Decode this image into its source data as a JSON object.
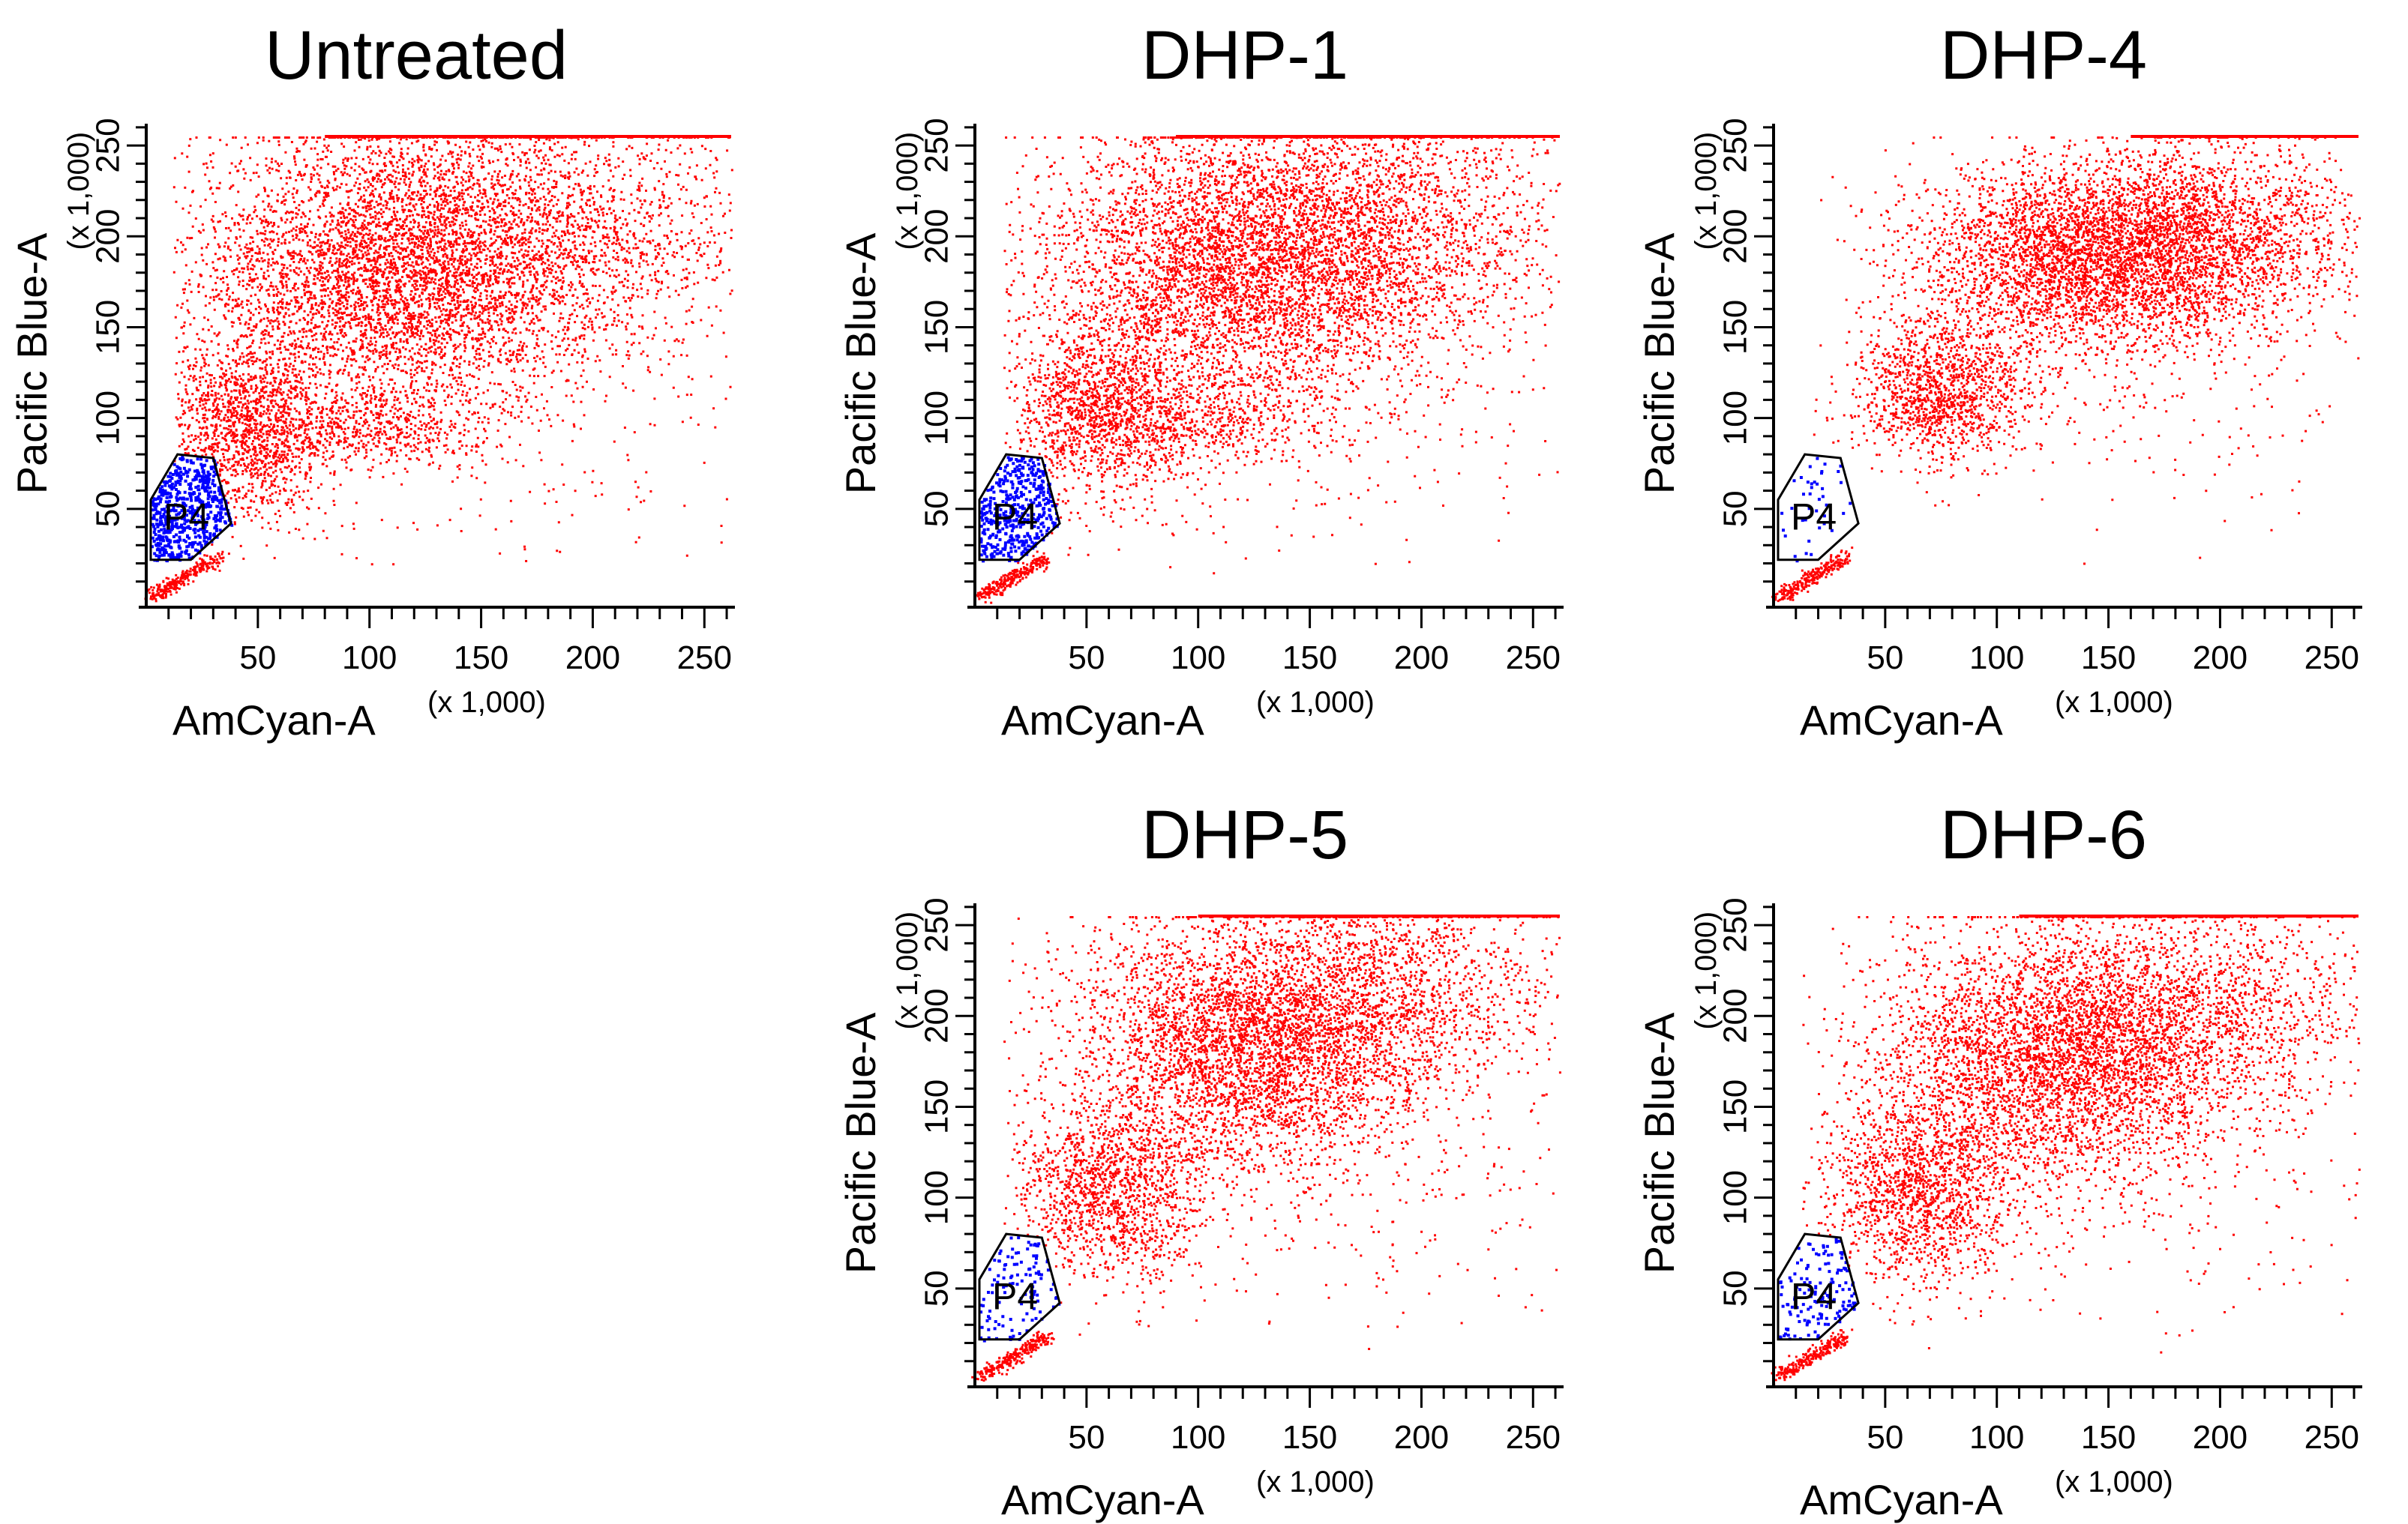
{
  "chart_data": [
    {
      "type": "scatter",
      "title": "Untreated",
      "xlabel": "AmCyan-A",
      "xscale": "(x 1,000)",
      "ylabel": "Pacific Blue-A",
      "yscale": "(x 1,000)",
      "xlim": [
        0,
        262
      ],
      "ylim": [
        0,
        262
      ],
      "xticks": [
        50,
        100,
        150,
        200,
        250
      ],
      "yticks": [
        50,
        100,
        150,
        200,
        250
      ],
      "gate": {
        "name": "P4",
        "polygon": [
          [
            2,
            22
          ],
          [
            20,
            22
          ],
          [
            38,
            42
          ],
          [
            30,
            78
          ],
          [
            14,
            80
          ],
          [
            2,
            55
          ]
        ]
      },
      "series": [
        {
          "color": "#ff0000",
          "clusters": [
            {
              "cx": 110,
              "cy": 180,
              "sx": 45,
              "sy": 40,
              "n": 5200
            },
            {
              "cx": 45,
              "cy": 95,
              "sx": 18,
              "sy": 25,
              "n": 1400
            },
            {
              "cx": 100,
              "cy": 95,
              "sx": 25,
              "sy": 10,
              "n": 500
            },
            {
              "cx": 190,
              "cy": 200,
              "sx": 45,
              "sy": 35,
              "n": 1600
            },
            {
              "cx": 160,
              "cy": 80,
              "sx": 70,
              "sy": 35,
              "n": 150
            }
          ],
          "saturation_band": {
            "y": 255,
            "x_from": 80,
            "x_to": 262
          }
        },
        {
          "color": "#0000ff",
          "region": "P4",
          "n": 600
        }
      ]
    },
    {
      "type": "scatter",
      "title": "DHP-1",
      "xlabel": "AmCyan-A",
      "xscale": "(x 1,000)",
      "ylabel": "Pacific Blue-A",
      "yscale": "(x 1,000)",
      "xlim": [
        0,
        262
      ],
      "ylim": [
        0,
        262
      ],
      "xticks": [
        50,
        100,
        150,
        200,
        250
      ],
      "yticks": [
        50,
        100,
        150,
        200,
        250
      ],
      "gate": {
        "name": "P4",
        "polygon": [
          [
            2,
            22
          ],
          [
            20,
            22
          ],
          [
            38,
            42
          ],
          [
            30,
            78
          ],
          [
            14,
            80
          ],
          [
            2,
            55
          ]
        ]
      },
      "series": [
        {
          "color": "#ff0000",
          "clusters": [
            {
              "cx": 120,
              "cy": 185,
              "sx": 45,
              "sy": 38,
              "n": 5000
            },
            {
              "cx": 55,
              "cy": 105,
              "sx": 20,
              "sy": 25,
              "n": 1400
            },
            {
              "cx": 100,
              "cy": 100,
              "sx": 25,
              "sy": 12,
              "n": 500
            },
            {
              "cx": 190,
              "cy": 205,
              "sx": 40,
              "sy": 35,
              "n": 1400
            },
            {
              "cx": 170,
              "cy": 80,
              "sx": 70,
              "sy": 35,
              "n": 150
            }
          ],
          "saturation_band": {
            "y": 255,
            "x_from": 90,
            "x_to": 262
          }
        },
        {
          "color": "#0000ff",
          "region": "P4",
          "n": 450
        }
      ]
    },
    {
      "type": "scatter",
      "title": "DHP-4",
      "xlabel": "AmCyan-A",
      "xscale": "(x 1,000)",
      "ylabel": "Pacific Blue-A",
      "yscale": "(x 1,000)",
      "xlim": [
        0,
        262
      ],
      "ylim": [
        0,
        262
      ],
      "xticks": [
        50,
        100,
        150,
        200,
        250
      ],
      "yticks": [
        50,
        100,
        150,
        200,
        250
      ],
      "gate": {
        "name": "P4",
        "polygon": [
          [
            2,
            22
          ],
          [
            20,
            22
          ],
          [
            38,
            42
          ],
          [
            30,
            78
          ],
          [
            14,
            80
          ],
          [
            2,
            55
          ]
        ]
      },
      "series": [
        {
          "color": "#ff0000",
          "clusters": [
            {
              "cx": 145,
              "cy": 190,
              "sx": 40,
              "sy": 25,
              "n": 4200
            },
            {
              "cx": 75,
              "cy": 115,
              "sx": 20,
              "sy": 20,
              "n": 1300
            },
            {
              "cx": 200,
              "cy": 205,
              "sx": 35,
              "sy": 25,
              "n": 1200
            },
            {
              "cx": 170,
              "cy": 110,
              "sx": 60,
              "sy": 40,
              "n": 200
            }
          ],
          "saturation_band": {
            "y": 255,
            "x_from": 160,
            "x_to": 262
          }
        },
        {
          "color": "#0000ff",
          "region": "P4",
          "n": 40
        }
      ]
    },
    {
      "type": "scatter",
      "title": "DHP-5",
      "xlabel": "AmCyan-A",
      "xscale": "(x 1,000)",
      "ylabel": "Pacific Blue-A",
      "yscale": "(x 1,000)",
      "xlim": [
        0,
        262
      ],
      "ylim": [
        0,
        262
      ],
      "xticks": [
        50,
        100,
        150,
        200,
        250
      ],
      "yticks": [
        50,
        100,
        150,
        200,
        250
      ],
      "gate": {
        "name": "P4",
        "polygon": [
          [
            2,
            22
          ],
          [
            20,
            22
          ],
          [
            38,
            42
          ],
          [
            30,
            78
          ],
          [
            14,
            80
          ],
          [
            2,
            55
          ]
        ]
      },
      "series": [
        {
          "color": "#ff0000",
          "clusters": [
            {
              "cx": 125,
              "cy": 185,
              "sx": 40,
              "sy": 35,
              "n": 4300
            },
            {
              "cx": 60,
              "cy": 105,
              "sx": 22,
              "sy": 25,
              "n": 1400
            },
            {
              "cx": 190,
              "cy": 215,
              "sx": 35,
              "sy": 30,
              "n": 1100
            },
            {
              "cx": 170,
              "cy": 90,
              "sx": 65,
              "sy": 40,
              "n": 200
            }
          ],
          "saturation_band": {
            "y": 255,
            "x_from": 100,
            "x_to": 262
          }
        },
        {
          "color": "#0000ff",
          "region": "P4",
          "n": 120
        }
      ]
    },
    {
      "type": "scatter",
      "title": "DHP-6",
      "xlabel": "AmCyan-A",
      "xscale": "(x 1,000)",
      "ylabel": "Pacific Blue-A",
      "yscale": "(x 1,000)",
      "xlim": [
        0,
        262
      ],
      "ylim": [
        0,
        262
      ],
      "xticks": [
        50,
        100,
        150,
        200,
        250
      ],
      "yticks": [
        50,
        100,
        150,
        200,
        250
      ],
      "gate": {
        "name": "P4",
        "polygon": [
          [
            2,
            22
          ],
          [
            20,
            22
          ],
          [
            38,
            42
          ],
          [
            30,
            78
          ],
          [
            14,
            80
          ],
          [
            2,
            55
          ]
        ]
      },
      "series": [
        {
          "color": "#ff0000",
          "clusters": [
            {
              "cx": 130,
              "cy": 180,
              "sx": 42,
              "sy": 35,
              "n": 4300
            },
            {
              "cx": 65,
              "cy": 105,
              "sx": 22,
              "sy": 25,
              "n": 1500
            },
            {
              "cx": 195,
              "cy": 205,
              "sx": 38,
              "sy": 30,
              "n": 1100
            },
            {
              "cx": 170,
              "cy": 95,
              "sx": 65,
              "sy": 40,
              "n": 200
            }
          ],
          "saturation_band": {
            "y": 255,
            "x_from": 110,
            "x_to": 262
          }
        },
        {
          "color": "#0000ff",
          "region": "P4",
          "n": 150
        }
      ]
    }
  ]
}
